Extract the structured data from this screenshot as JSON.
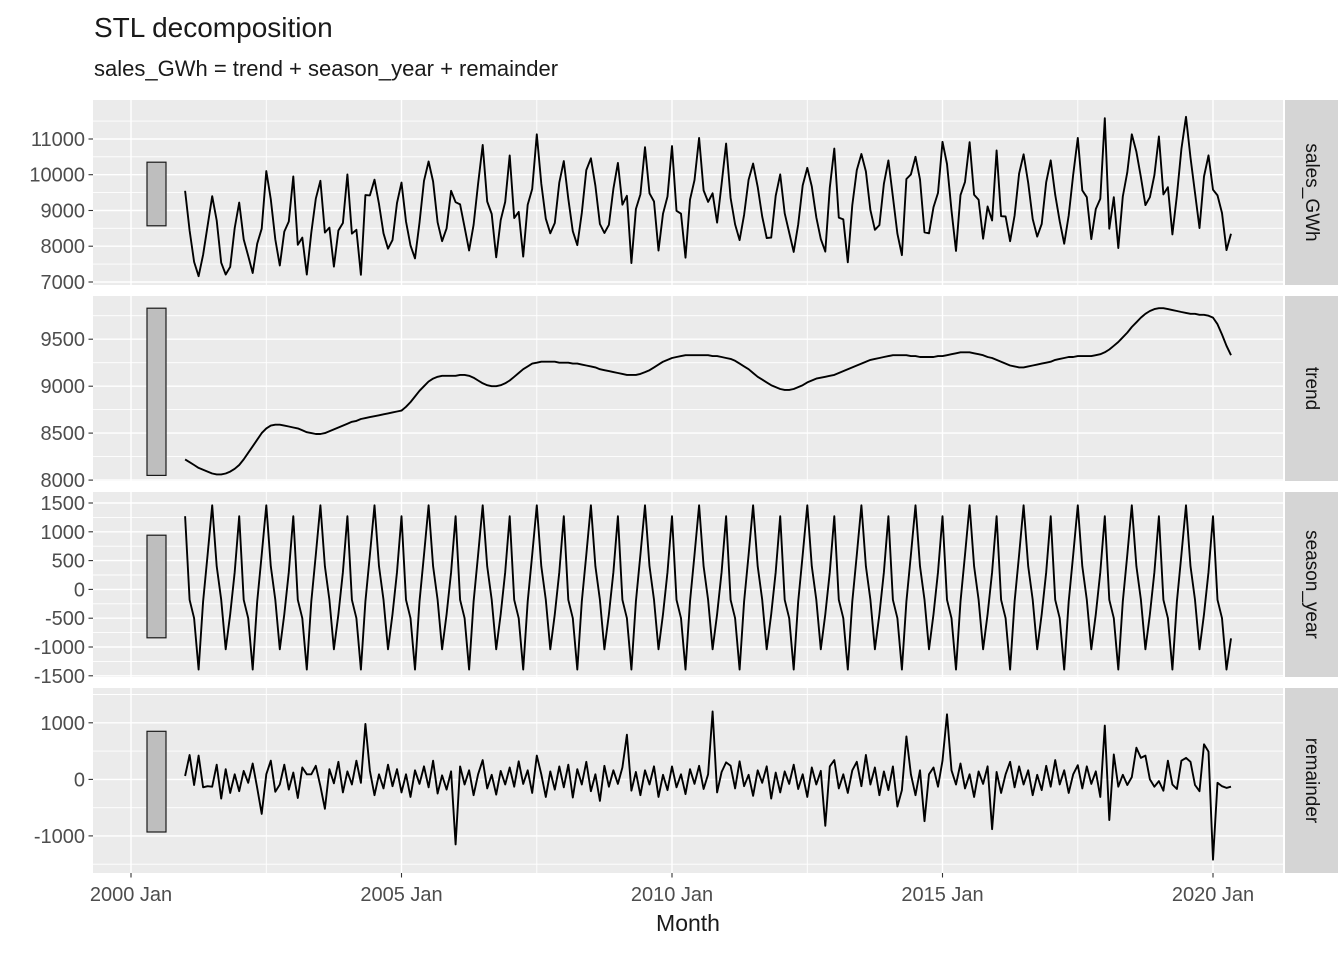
{
  "header": {
    "title": "STL decomposition",
    "subtitle": "sales_GWh = trend + season_year + remainder"
  },
  "colors": {
    "panel_background": "#EBEBEB",
    "gridline": "#FFFFFF",
    "strip_background": "#D5D5D5",
    "series_line": "#000000",
    "scale_bar_fill": "#BEBEBE",
    "scale_bar_stroke": "#1A1A1A",
    "tick_text": "#4D4D4D",
    "tick_mark": "#333333",
    "title_text": "#1A1A1A"
  },
  "chart_data": {
    "type": "line",
    "title": "STL decomposition",
    "subtitle": "sales_GWh = trend + season_year + remainder",
    "x_axis": {
      "title": "Month",
      "tick_labels": [
        "2000 Jan",
        "2005 Jan",
        "2010 Jan",
        "2015 Jan",
        "2020 Jan"
      ],
      "tick_years": [
        2000,
        2005,
        2010,
        2015,
        2020
      ],
      "minor_years": [
        2002.5,
        2007.5,
        2012.5,
        2017.5
      ],
      "range_years": [
        1999.3,
        2021.3
      ]
    },
    "frequency": "monthly",
    "x_start": "2001 Jan",
    "x_end": "2020 May",
    "n_points": 233,
    "legend": "none",
    "grid": true,
    "panels": [
      {
        "name": "sales_GWh",
        "y_ticks": [
          7000,
          8000,
          9000,
          10000,
          11000
        ],
        "y_minor": [
          7500,
          8500,
          9500,
          10500,
          11500
        ],
        "y_domain": [
          6915,
          12090
        ],
        "scale_bar": [
          8570,
          10350
        ],
        "values": [
          9550,
          8440,
          7560,
          7160,
          7760,
          8570,
          9400,
          8720,
          7540,
          7210,
          7420,
          8510,
          9220,
          8190,
          7730,
          7250,
          8070,
          8490,
          10100,
          9310,
          8190,
          7460,
          8410,
          8690,
          9950,
          8040,
          8240,
          7210,
          8380,
          9330,
          9830,
          8380,
          8520,
          7430,
          8440,
          8650,
          10010,
          8350,
          8460,
          7200,
          9430,
          9420,
          9860,
          9180,
          8360,
          7930,
          8170,
          9210,
          9780,
          8690,
          8020,
          7660,
          8660,
          9830,
          10370,
          9810,
          8670,
          8140,
          8500,
          9550,
          9230,
          9170,
          8530,
          7880,
          8600,
          9750,
          10830,
          9250,
          8900,
          7690,
          8730,
          9240,
          10540,
          8790,
          8960,
          7710,
          9160,
          9600,
          11130,
          9750,
          8770,
          8360,
          8650,
          9780,
          10380,
          9330,
          8420,
          8030,
          8930,
          10130,
          10460,
          9690,
          8620,
          8370,
          8600,
          9610,
          10330,
          9160,
          9410,
          7530,
          9040,
          9450,
          10770,
          9480,
          9250,
          7880,
          8910,
          9390,
          10800,
          8990,
          8910,
          7680,
          9300,
          9850,
          11030,
          9560,
          9240,
          9480,
          8660,
          9740,
          10870,
          9350,
          8610,
          8170,
          8880,
          9860,
          10310,
          9660,
          8830,
          8230,
          8240,
          9410,
          10010,
          8920,
          8380,
          7840,
          8610,
          9700,
          10190,
          9670,
          8810,
          8200,
          7850,
          9640,
          10730,
          8800,
          8750,
          7550,
          9150,
          10130,
          10580,
          10090,
          9010,
          8460,
          8590,
          9750,
          10400,
          9380,
          8350,
          7750,
          9880,
          10010,
          10500,
          9870,
          8390,
          8360,
          9090,
          9490,
          10920,
          10300,
          9000,
          7870,
          9430,
          9800,
          10910,
          9440,
          9300,
          8210,
          9110,
          8720,
          10680,
          8840,
          8830,
          8140,
          8860,
          10030,
          10570,
          9770,
          8760,
          8270,
          8620,
          9790,
          10400,
          9440,
          8700,
          8070,
          8860,
          10000,
          11030,
          9560,
          9370,
          8200,
          9040,
          9330,
          11580,
          8490,
          9370,
          7950,
          9390,
          10070,
          11130,
          10640,
          9930,
          9150,
          9370,
          9990,
          11070,
          9450,
          9650,
          8330,
          9420,
          10720,
          11620,
          10480,
          9490,
          8510,
          9950,
          10540,
          9580,
          9420,
          8930,
          7890,
          8350
        ]
      },
      {
        "name": "trend",
        "y_ticks": [
          8000,
          8500,
          9000,
          9500
        ],
        "y_minor": [
          8250,
          8750,
          9250,
          9750
        ],
        "y_domain": [
          7990,
          9960
        ],
        "scale_bar": [
          8050,
          9830
        ],
        "values": [
          8220,
          8190,
          8160,
          8130,
          8110,
          8090,
          8070,
          8060,
          8060,
          8070,
          8090,
          8120,
          8160,
          8220,
          8290,
          8360,
          8430,
          8500,
          8550,
          8580,
          8590,
          8590,
          8580,
          8570,
          8560,
          8550,
          8530,
          8510,
          8500,
          8490,
          8490,
          8500,
          8520,
          8540,
          8560,
          8580,
          8600,
          8620,
          8630,
          8650,
          8660,
          8670,
          8680,
          8690,
          8700,
          8710,
          8720,
          8730,
          8740,
          8780,
          8830,
          8890,
          8950,
          9000,
          9050,
          9080,
          9100,
          9110,
          9110,
          9110,
          9110,
          9120,
          9120,
          9110,
          9090,
          9060,
          9030,
          9010,
          9000,
          9000,
          9010,
          9030,
          9060,
          9100,
          9140,
          9180,
          9210,
          9240,
          9250,
          9260,
          9260,
          9260,
          9260,
          9250,
          9250,
          9250,
          9240,
          9240,
          9230,
          9220,
          9210,
          9200,
          9180,
          9170,
          9160,
          9150,
          9140,
          9130,
          9120,
          9120,
          9120,
          9130,
          9150,
          9170,
          9200,
          9230,
          9260,
          9280,
          9300,
          9310,
          9320,
          9330,
          9330,
          9330,
          9330,
          9330,
          9330,
          9320,
          9320,
          9310,
          9300,
          9290,
          9270,
          9240,
          9210,
          9180,
          9140,
          9100,
          9070,
          9040,
          9010,
          8990,
          8970,
          8960,
          8960,
          8970,
          8990,
          9010,
          9040,
          9060,
          9080,
          9090,
          9100,
          9110,
          9120,
          9140,
          9160,
          9180,
          9200,
          9220,
          9240,
          9260,
          9280,
          9290,
          9300,
          9310,
          9320,
          9330,
          9330,
          9330,
          9330,
          9320,
          9320,
          9310,
          9310,
          9310,
          9310,
          9320,
          9320,
          9330,
          9340,
          9350,
          9360,
          9360,
          9360,
          9350,
          9340,
          9330,
          9310,
          9300,
          9280,
          9260,
          9240,
          9220,
          9210,
          9200,
          9200,
          9210,
          9220,
          9230,
          9240,
          9250,
          9260,
          9280,
          9290,
          9300,
          9310,
          9310,
          9320,
          9320,
          9320,
          9320,
          9330,
          9340,
          9360,
          9390,
          9430,
          9470,
          9520,
          9570,
          9630,
          9680,
          9730,
          9770,
          9800,
          9820,
          9830,
          9830,
          9820,
          9810,
          9800,
          9790,
          9780,
          9770,
          9770,
          9760,
          9760,
          9750,
          9730,
          9660,
          9550,
          9430,
          9330
        ]
      },
      {
        "name": "season_year",
        "y_ticks": [
          -1500,
          -1000,
          -500,
          0,
          500,
          1000,
          1500
        ],
        "y_minor": [
          -1250,
          -750,
          -250,
          250,
          750,
          1250
        ],
        "y_domain": [
          -1520,
          1690
        ],
        "scale_bar": [
          -840,
          940
        ],
        "values": [
          1270,
          -180,
          -500,
          -1390,
          -210,
          600,
          1460,
          400,
          -180,
          -1040,
          -430,
          300,
          1270,
          -180,
          -500,
          -1390,
          -210,
          600,
          1460,
          400,
          -180,
          -1040,
          -430,
          300,
          1270,
          -180,
          -500,
          -1390,
          -210,
          600,
          1460,
          400,
          -180,
          -1040,
          -430,
          300,
          1270,
          -180,
          -500,
          -1390,
          -210,
          600,
          1460,
          400,
          -180,
          -1040,
          -430,
          300,
          1270,
          -180,
          -500,
          -1390,
          -210,
          600,
          1460,
          400,
          -180,
          -1040,
          -430,
          300,
          1270,
          -180,
          -500,
          -1390,
          -210,
          600,
          1460,
          400,
          -180,
          -1040,
          -430,
          300,
          1270,
          -180,
          -500,
          -1390,
          -210,
          600,
          1460,
          400,
          -180,
          -1040,
          -430,
          300,
          1270,
          -180,
          -500,
          -1390,
          -210,
          600,
          1460,
          400,
          -180,
          -1040,
          -430,
          300,
          1270,
          -180,
          -500,
          -1390,
          -210,
          600,
          1460,
          400,
          -180,
          -1040,
          -430,
          300,
          1270,
          -180,
          -500,
          -1390,
          -210,
          600,
          1460,
          400,
          -180,
          -1040,
          -430,
          300,
          1270,
          -180,
          -500,
          -1390,
          -210,
          600,
          1460,
          400,
          -180,
          -1040,
          -430,
          300,
          1270,
          -180,
          -500,
          -1390,
          -210,
          600,
          1460,
          400,
          -180,
          -1040,
          -430,
          300,
          1270,
          -180,
          -500,
          -1390,
          -210,
          600,
          1460,
          400,
          -180,
          -1040,
          -430,
          300,
          1270,
          -180,
          -500,
          -1390,
          -210,
          600,
          1460,
          400,
          -180,
          -1040,
          -430,
          300,
          1270,
          -180,
          -500,
          -1390,
          -210,
          600,
          1460,
          400,
          -180,
          -1040,
          -430,
          300,
          1270,
          -180,
          -500,
          -1390,
          -210,
          600,
          1460,
          400,
          -180,
          -1040,
          -430,
          300,
          1270,
          -180,
          -500,
          -1390,
          -210,
          600,
          1460,
          400,
          -180,
          -1040,
          -430,
          300,
          1270,
          -180,
          -500,
          -1390,
          -210,
          600,
          1460,
          400,
          -180,
          -1040,
          -430,
          300,
          1270,
          -180,
          -500,
          -1390,
          -210,
          600,
          1460,
          400,
          -180,
          -1040,
          -430,
          300,
          1270,
          -180,
          -500,
          -1390,
          -850
        ]
      },
      {
        "name": "remainder",
        "y_ticks": [
          -1000,
          0,
          1000
        ],
        "y_minor": [
          -1500,
          -500,
          500,
          1500
        ],
        "y_domain": [
          -1655,
          1615
        ],
        "scale_bar": [
          -930,
          850
        ],
        "values": [
          60,
          430,
          -100,
          420,
          -140,
          -120,
          -130,
          260,
          -340,
          180,
          -240,
          90,
          -210,
          150,
          -60,
          280,
          -150,
          -610,
          90,
          330,
          -220,
          -90,
          260,
          -180,
          120,
          -330,
          210,
          90,
          90,
          240,
          -120,
          -520,
          180,
          -70,
          310,
          -230,
          140,
          -90,
          330,
          -60,
          980,
          150,
          -280,
          90,
          -160,
          260,
          -120,
          180,
          -230,
          90,
          -310,
          160,
          -80,
          230,
          -140,
          330,
          -250,
          70,
          -180,
          140,
          -1150,
          230,
          -90,
          160,
          -280,
          90,
          340,
          -160,
          80,
          -270,
          150,
          -90,
          210,
          -130,
          320,
          -80,
          160,
          -240,
          420,
          90,
          -310,
          140,
          -180,
          230,
          -140,
          260,
          -320,
          180,
          -90,
          310,
          -210,
          90,
          -380,
          240,
          -130,
          160,
          -80,
          210,
          790,
          -200,
          130,
          -280,
          160,
          -90,
          230,
          -310,
          80,
          -190,
          230,
          -140,
          90,
          -260,
          180,
          -80,
          240,
          -170,
          90,
          1200,
          -230,
          130,
          300,
          240,
          -160,
          320,
          -120,
          80,
          -290,
          160,
          -60,
          230,
          -340,
          120,
          -230,
          140,
          -80,
          260,
          -170,
          90,
          -310,
          210,
          -90,
          150,
          -820,
          230,
          340,
          -160,
          90,
          -240,
          160,
          310,
          -120,
          430,
          -90,
          210,
          -280,
          140,
          -190,
          230,
          -480,
          -190,
          760,
          90,
          -280,
          160,
          -740,
          90,
          210,
          -130,
          330,
          1150,
          160,
          -90,
          280,
          -160,
          90,
          -310,
          140,
          -80,
          230,
          -880,
          130,
          -240,
          90,
          310,
          -140,
          230,
          -90,
          160,
          -280,
          80,
          -190,
          240,
          -130,
          340,
          -90,
          160,
          -240,
          90,
          250,
          -160,
          230,
          -80,
          140,
          -310,
          950,
          -720,
          440,
          -130,
          80,
          -100,
          40,
          560,
          380,
          420,
          0,
          -130,
          -30,
          -200,
          330,
          -90,
          -170,
          330,
          380,
          310,
          -100,
          -210,
          620,
          490,
          -1420,
          -60,
          -120,
          -150,
          -130
        ]
      }
    ]
  }
}
